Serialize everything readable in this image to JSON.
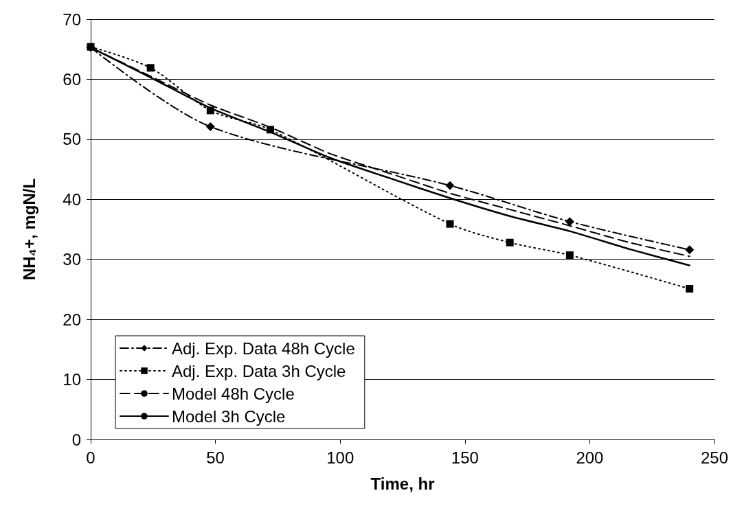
{
  "chart_data": {
    "type": "line",
    "xlabel": "Time, hr",
    "ylabel": "NH₄+, mgN/L",
    "xlim": [
      0,
      250
    ],
    "xticks": [
      0,
      50,
      100,
      150,
      200,
      250
    ],
    "ylim": [
      0,
      70
    ],
    "yticks": [
      0,
      10,
      20,
      30,
      40,
      50,
      60,
      70
    ],
    "grid": "y",
    "legend": "bottom left",
    "series": [
      {
        "name": "Adj. Exp. Data 48h Cycle",
        "color": "#000000",
        "marker": "diamond",
        "line_style": "dashdot",
        "x": [
          0,
          48,
          144,
          192,
          240
        ],
        "values": [
          65.3,
          52.1,
          42.3,
          36.3,
          31.6
        ]
      },
      {
        "name": "Adj. Exp. Data 3h Cycle",
        "color": "#000000",
        "marker": "square",
        "line_style": "dotted",
        "x": [
          0,
          24,
          48,
          72,
          144,
          168,
          192,
          240
        ],
        "values": [
          65.4,
          61.9,
          54.8,
          51.6,
          35.9,
          32.8,
          30.7,
          25.1
        ]
      },
      {
        "name": "Model 48h Cycle",
        "color": "#000000",
        "marker": "none",
        "line_style": "dashed",
        "x": [
          0,
          24,
          48,
          72,
          96,
          120,
          144,
          168,
          192,
          216,
          240
        ],
        "values": [
          65.3,
          60.5,
          55.7,
          52,
          47.6,
          44.3,
          41,
          38.3,
          35.6,
          32.8,
          30.5
        ]
      },
      {
        "name": "Model 3h Cycle",
        "color": "#000000",
        "marker": "none",
        "line_style": "solid",
        "x": [
          0,
          24,
          48,
          72,
          96,
          120,
          144,
          168,
          192,
          216,
          240
        ],
        "values": [
          65.3,
          60.3,
          55.2,
          51.2,
          46.9,
          43.5,
          40.2,
          37.2,
          34.7,
          31.7,
          29
        ]
      }
    ]
  }
}
